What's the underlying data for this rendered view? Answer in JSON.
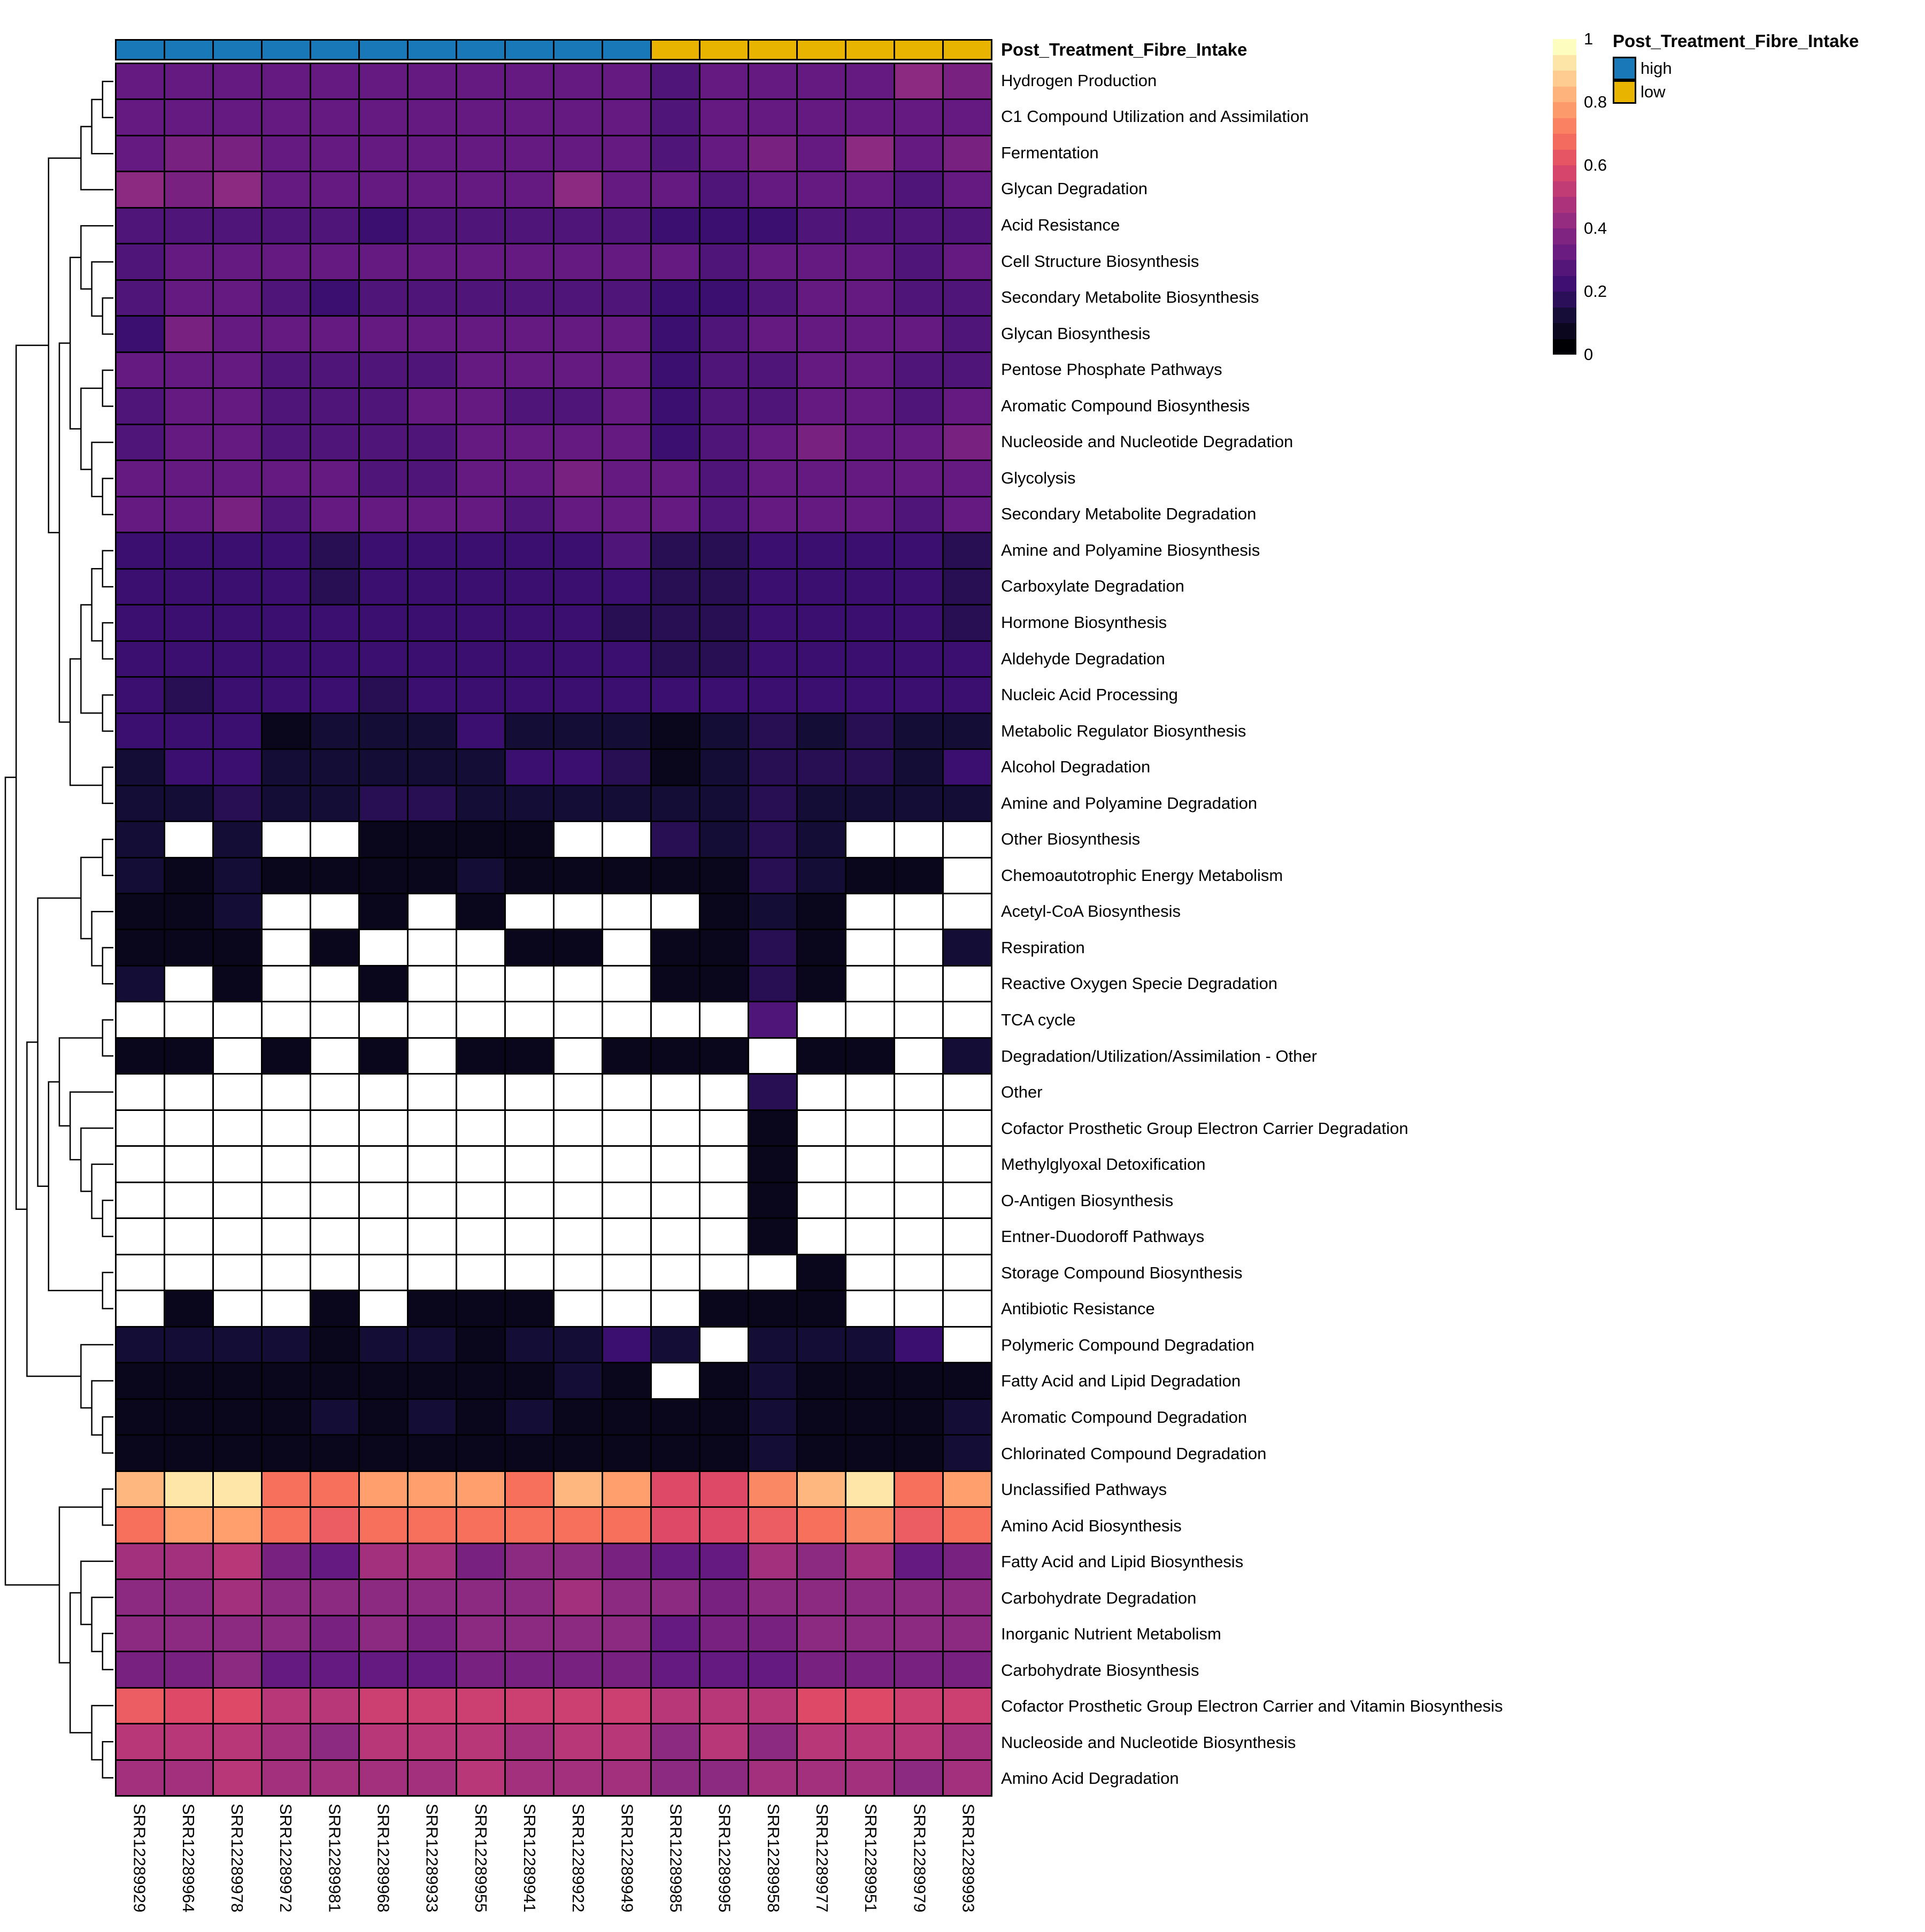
{
  "annotation_title": "Post_Treatment_Fibre_Intake",
  "annotation_legend": {
    "title": "Post_Treatment_Fibre_Intake",
    "entries": [
      {
        "label": "high",
        "color": "#1878b8"
      },
      {
        "label": "low",
        "color": "#e9b400"
      }
    ]
  },
  "colorbar": {
    "ticks": [
      "1",
      "0.8",
      "0.6",
      "0.4",
      "0.2",
      "0"
    ],
    "tick_values": [
      1,
      0.8,
      0.6,
      0.4,
      0.2,
      0
    ],
    "steps": 20
  },
  "chart_data": {
    "type": "heatmap",
    "colormap": "magma",
    "value_range": [
      0,
      1
    ],
    "na_color": "#ffffff",
    "grid_color": "#000000",
    "columns": [
      "SRR12289929",
      "SRR12289964",
      "SRR12289978",
      "SRR12289972",
      "SRR12289981",
      "SRR12289968",
      "SRR12289933",
      "SRR12289955",
      "SRR12289941",
      "SRR12289922",
      "SRR12289949",
      "SRR12289985",
      "SRR12289995",
      "SRR12289958",
      "SRR12289977",
      "SRR12289951",
      "SRR12289979",
      "SRR12289993"
    ],
    "column_groups": [
      "high",
      "high",
      "high",
      "high",
      "high",
      "high",
      "high",
      "high",
      "high",
      "high",
      "high",
      "low",
      "low",
      "low",
      "low",
      "low",
      "low",
      "low"
    ],
    "rows": [
      "Hydrogen Production",
      "C1 Compound Utilization and Assimilation",
      "Fermentation",
      "Glycan Degradation",
      "Acid Resistance",
      "Cell Structure Biosynthesis",
      "Secondary Metabolite Biosynthesis",
      "Glycan Biosynthesis",
      "Pentose Phosphate Pathways",
      "Aromatic Compound Biosynthesis",
      "Nucleoside and Nucleotide Degradation",
      "Glycolysis",
      "Secondary Metabolite Degradation",
      "Amine and Polyamine Biosynthesis",
      "Carboxylate Degradation",
      "Hormone Biosynthesis",
      "Aldehyde Degradation",
      "Nucleic Acid Processing",
      "Metabolic Regulator Biosynthesis",
      "Alcohol Degradation",
      "Amine and Polyamine Degradation",
      "Other Biosynthesis",
      "Chemoautotrophic Energy Metabolism",
      "Acetyl-CoA Biosynthesis",
      "Respiration",
      "Reactive Oxygen Specie Degradation",
      "TCA cycle",
      "Degradation/Utilization/Assimilation - Other",
      "Other",
      "Cofactor Prosthetic Group Electron Carrier Degradation",
      "Methylglyoxal Detoxification",
      "O-Antigen Biosynthesis",
      "Entner-Duodoroff Pathways",
      "Storage Compound Biosynthesis",
      "Antibiotic Resistance",
      "Polymeric Compound Degradation",
      "Fatty Acid and Lipid Degradation",
      "Aromatic Compound Degradation",
      "Chlorinated Compound Degradation",
      "Unclassified Pathways",
      "Amino Acid Biosynthesis",
      "Fatty Acid and Lipid Biosynthesis",
      "Carbohydrate Degradation",
      "Inorganic Nutrient Metabolism",
      "Carbohydrate Biosynthesis",
      "Cofactor Prosthetic Group Electron Carrier and Vitamin Biosynthesis",
      "Nucleoside and Nucleotide Biosynthesis",
      "Amino Acid Degradation"
    ],
    "values": [
      [
        0.3,
        0.3,
        0.3,
        0.3,
        0.3,
        0.3,
        0.3,
        0.32,
        0.32,
        0.32,
        0.32,
        0.24,
        0.3,
        0.3,
        0.3,
        0.32,
        0.38,
        0.36
      ],
      [
        0.32,
        0.3,
        0.3,
        0.28,
        0.28,
        0.28,
        0.28,
        0.3,
        0.28,
        0.3,
        0.3,
        0.24,
        0.28,
        0.28,
        0.28,
        0.3,
        0.28,
        0.3
      ],
      [
        0.28,
        0.36,
        0.36,
        0.3,
        0.28,
        0.32,
        0.32,
        0.32,
        0.32,
        0.32,
        0.32,
        0.24,
        0.28,
        0.34,
        0.3,
        0.38,
        0.32,
        0.34
      ],
      [
        0.38,
        0.36,
        0.38,
        0.3,
        0.3,
        0.32,
        0.28,
        0.32,
        0.28,
        0.38,
        0.32,
        0.28,
        0.24,
        0.3,
        0.32,
        0.32,
        0.26,
        0.3
      ],
      [
        0.26,
        0.26,
        0.26,
        0.26,
        0.26,
        0.22,
        0.26,
        0.26,
        0.26,
        0.26,
        0.26,
        0.22,
        0.22,
        0.22,
        0.24,
        0.24,
        0.24,
        0.26
      ],
      [
        0.26,
        0.3,
        0.3,
        0.28,
        0.28,
        0.28,
        0.28,
        0.28,
        0.28,
        0.28,
        0.28,
        0.28,
        0.26,
        0.28,
        0.28,
        0.3,
        0.26,
        0.28
      ],
      [
        0.26,
        0.28,
        0.28,
        0.26,
        0.22,
        0.26,
        0.26,
        0.26,
        0.26,
        0.26,
        0.26,
        0.22,
        0.22,
        0.26,
        0.28,
        0.28,
        0.24,
        0.24
      ],
      [
        0.22,
        0.34,
        0.3,
        0.3,
        0.28,
        0.3,
        0.28,
        0.28,
        0.3,
        0.3,
        0.28,
        0.22,
        0.24,
        0.28,
        0.28,
        0.3,
        0.28,
        0.26
      ],
      [
        0.28,
        0.3,
        0.3,
        0.26,
        0.26,
        0.26,
        0.26,
        0.3,
        0.3,
        0.3,
        0.3,
        0.22,
        0.24,
        0.26,
        0.3,
        0.3,
        0.26,
        0.26
      ],
      [
        0.26,
        0.3,
        0.3,
        0.26,
        0.26,
        0.26,
        0.32,
        0.3,
        0.26,
        0.26,
        0.3,
        0.22,
        0.26,
        0.26,
        0.28,
        0.28,
        0.24,
        0.28
      ],
      [
        0.26,
        0.3,
        0.28,
        0.26,
        0.26,
        0.26,
        0.26,
        0.28,
        0.28,
        0.28,
        0.28,
        0.22,
        0.26,
        0.3,
        0.34,
        0.28,
        0.28,
        0.34
      ],
      [
        0.3,
        0.3,
        0.3,
        0.28,
        0.28,
        0.26,
        0.26,
        0.3,
        0.28,
        0.34,
        0.3,
        0.28,
        0.26,
        0.28,
        0.28,
        0.3,
        0.28,
        0.28
      ],
      [
        0.3,
        0.3,
        0.36,
        0.24,
        0.3,
        0.28,
        0.28,
        0.3,
        0.26,
        0.3,
        0.3,
        0.28,
        0.26,
        0.32,
        0.3,
        0.3,
        0.24,
        0.28
      ],
      [
        0.2,
        0.2,
        0.2,
        0.2,
        0.14,
        0.2,
        0.2,
        0.2,
        0.2,
        0.2,
        0.26,
        0.16,
        0.16,
        0.2,
        0.2,
        0.2,
        0.2,
        0.16
      ],
      [
        0.2,
        0.2,
        0.2,
        0.2,
        0.14,
        0.2,
        0.2,
        0.2,
        0.2,
        0.2,
        0.22,
        0.14,
        0.16,
        0.2,
        0.2,
        0.2,
        0.2,
        0.14
      ],
      [
        0.2,
        0.2,
        0.2,
        0.2,
        0.2,
        0.2,
        0.2,
        0.2,
        0.2,
        0.2,
        0.16,
        0.14,
        0.16,
        0.2,
        0.2,
        0.2,
        0.2,
        0.14
      ],
      [
        0.2,
        0.2,
        0.2,
        0.2,
        0.2,
        0.2,
        0.2,
        0.2,
        0.2,
        0.2,
        0.2,
        0.14,
        0.16,
        0.2,
        0.2,
        0.2,
        0.18,
        0.2
      ],
      [
        0.2,
        0.14,
        0.2,
        0.2,
        0.2,
        0.14,
        0.2,
        0.2,
        0.2,
        0.2,
        0.2,
        0.18,
        0.18,
        0.2,
        0.2,
        0.2,
        0.2,
        0.18
      ],
      [
        0.18,
        0.18,
        0.18,
        0.05,
        0.1,
        0.12,
        0.1,
        0.18,
        0.1,
        0.1,
        0.1,
        0.04,
        0.1,
        0.16,
        0.12,
        0.16,
        0.08,
        0.08
      ],
      [
        0.08,
        0.18,
        0.18,
        0.12,
        0.1,
        0.1,
        0.1,
        0.12,
        0.18,
        0.18,
        0.14,
        0.04,
        0.1,
        0.16,
        0.16,
        0.16,
        0.12,
        0.18
      ],
      [
        0.1,
        0.1,
        0.16,
        0.1,
        0.1,
        0.16,
        0.16,
        0.1,
        0.1,
        0.1,
        0.12,
        0.1,
        0.1,
        0.14,
        0.1,
        0.12,
        0.1,
        0.1
      ],
      [
        0.1,
        null,
        0.1,
        null,
        null,
        0.06,
        0.06,
        0.06,
        0.06,
        null,
        null,
        0.14,
        0.08,
        0.14,
        0.08,
        null,
        null,
        null
      ],
      [
        0.08,
        0.06,
        0.12,
        0.06,
        0.06,
        0.06,
        0.06,
        0.12,
        0.06,
        0.06,
        0.06,
        0.06,
        0.06,
        0.14,
        0.08,
        0.06,
        0.06,
        null
      ],
      [
        0.06,
        0.06,
        0.12,
        null,
        null,
        0.06,
        null,
        0.06,
        null,
        null,
        null,
        null,
        0.06,
        0.08,
        0.06,
        null,
        null,
        null
      ],
      [
        0.06,
        0.06,
        0.06,
        null,
        0.06,
        null,
        null,
        null,
        0.06,
        0.06,
        null,
        0.06,
        0.06,
        0.14,
        0.06,
        null,
        null,
        0.08
      ],
      [
        0.12,
        null,
        0.06,
        null,
        null,
        0.06,
        null,
        null,
        null,
        null,
        null,
        0.06,
        0.06,
        0.14,
        0.06,
        null,
        null,
        null
      ],
      [
        null,
        null,
        null,
        null,
        null,
        null,
        null,
        null,
        null,
        null,
        null,
        null,
        null,
        0.25,
        null,
        null,
        null,
        null
      ],
      [
        0.06,
        0.06,
        null,
        0.06,
        null,
        0.06,
        null,
        0.06,
        0.06,
        null,
        0.06,
        0.06,
        0.06,
        null,
        0.06,
        0.06,
        null,
        0.08
      ],
      [
        null,
        null,
        null,
        null,
        null,
        null,
        null,
        null,
        null,
        null,
        null,
        null,
        null,
        0.16,
        null,
        null,
        null,
        null
      ],
      [
        null,
        null,
        null,
        null,
        null,
        null,
        null,
        null,
        null,
        null,
        null,
        null,
        null,
        0.05,
        null,
        null,
        null,
        null
      ],
      [
        null,
        null,
        null,
        null,
        null,
        null,
        null,
        null,
        null,
        null,
        null,
        null,
        null,
        0.05,
        null,
        null,
        null,
        null
      ],
      [
        null,
        null,
        null,
        null,
        null,
        null,
        null,
        null,
        null,
        null,
        null,
        null,
        null,
        0.05,
        null,
        null,
        null,
        null
      ],
      [
        null,
        null,
        null,
        null,
        null,
        null,
        null,
        null,
        null,
        null,
        null,
        null,
        null,
        0.05,
        null,
        null,
        null,
        null
      ],
      [
        null,
        null,
        null,
        null,
        null,
        null,
        null,
        null,
        null,
        null,
        null,
        null,
        null,
        null,
        0.05,
        null,
        null,
        null
      ],
      [
        null,
        0.05,
        null,
        null,
        0.05,
        null,
        0.05,
        0.05,
        0.05,
        null,
        null,
        null,
        0.05,
        0.05,
        0.05,
        null,
        null,
        null
      ],
      [
        0.1,
        0.08,
        0.08,
        0.08,
        0.06,
        0.1,
        0.1,
        0.06,
        0.1,
        0.08,
        0.18,
        0.08,
        null,
        0.1,
        0.08,
        0.08,
        0.18,
        null
      ],
      [
        0.05,
        0.05,
        0.05,
        0.05,
        0.05,
        0.05,
        0.05,
        0.05,
        0.05,
        0.1,
        0.05,
        null,
        0.05,
        0.1,
        0.05,
        0.05,
        0.05,
        0.05
      ],
      [
        0.04,
        0.04,
        0.04,
        0.04,
        0.1,
        0.04,
        0.08,
        0.04,
        0.08,
        0.04,
        0.04,
        0.04,
        0.04,
        0.1,
        0.04,
        0.04,
        0.04,
        0.08
      ],
      [
        0.04,
        0.04,
        0.04,
        0.04,
        0.04,
        0.04,
        0.04,
        0.04,
        0.04,
        0.04,
        0.04,
        0.04,
        0.04,
        0.1,
        0.04,
        0.04,
        0.04,
        0.08
      ],
      [
        0.85,
        0.95,
        0.95,
        0.7,
        0.7,
        0.78,
        0.8,
        0.78,
        0.72,
        0.85,
        0.8,
        0.62,
        0.62,
        0.75,
        0.85,
        0.95,
        0.7,
        0.8
      ],
      [
        0.7,
        0.78,
        0.8,
        0.7,
        0.64,
        0.72,
        0.7,
        0.7,
        0.68,
        0.72,
        0.72,
        0.6,
        0.62,
        0.66,
        0.7,
        0.76,
        0.66,
        0.7
      ],
      [
        0.46,
        0.44,
        0.48,
        0.34,
        0.32,
        0.44,
        0.46,
        0.36,
        0.4,
        0.38,
        0.34,
        0.3,
        0.3,
        0.44,
        0.42,
        0.44,
        0.32,
        0.36
      ],
      [
        0.42,
        0.42,
        0.44,
        0.38,
        0.38,
        0.42,
        0.4,
        0.4,
        0.4,
        0.44,
        0.42,
        0.4,
        0.34,
        0.4,
        0.4,
        0.42,
        0.4,
        0.4
      ],
      [
        0.38,
        0.38,
        0.38,
        0.38,
        0.36,
        0.38,
        0.36,
        0.38,
        0.38,
        0.38,
        0.38,
        0.32,
        0.36,
        0.36,
        0.38,
        0.38,
        0.38,
        0.38
      ],
      [
        0.36,
        0.36,
        0.42,
        0.3,
        0.32,
        0.32,
        0.32,
        0.34,
        0.34,
        0.34,
        0.34,
        0.3,
        0.32,
        0.32,
        0.36,
        0.36,
        0.36,
        0.34
      ],
      [
        0.64,
        0.58,
        0.62,
        0.52,
        0.52,
        0.54,
        0.54,
        0.54,
        0.54,
        0.54,
        0.54,
        0.48,
        0.48,
        0.52,
        0.6,
        0.6,
        0.54,
        0.54
      ],
      [
        0.48,
        0.5,
        0.52,
        0.46,
        0.4,
        0.48,
        0.48,
        0.48,
        0.46,
        0.48,
        0.48,
        0.42,
        0.48,
        0.42,
        0.48,
        0.48,
        0.48,
        0.46
      ],
      [
        0.46,
        0.46,
        0.52,
        0.44,
        0.44,
        0.44,
        0.44,
        0.48,
        0.44,
        0.44,
        0.44,
        0.4,
        0.4,
        0.44,
        0.44,
        0.46,
        0.42,
        0.44
      ]
    ],
    "row_dendrogram": [
      [
        [
          [
            [
              [
                0,
                1
              ],
              2
            ],
            3
          ],
          [
            [
              [
                4,
                [
                  5,
                  [
                    6,
                    7
                  ]
                ]
              ],
              [
                [
                  8,
                  9
                ],
                [
                  10,
                  [
                    11,
                    12
                  ]
                ]
              ]
            ],
            [
              [
                [
                  [
                    13,
                    14
                  ],
                  [
                    15,
                    16
                  ]
                ],
                [
                  17,
                  18
                ]
              ],
              [
                19,
                20
              ]
            ]
          ]
        ],
        [
          [
            [
              [
                21,
                22
              ],
              [
                23,
                [
                  24,
                  25
                ]
              ]
            ],
            [
              [
                [
                  26,
                  27
                ],
                [
                  28,
                  [
                    29,
                    [
                      30,
                      [
                        31,
                        32
                      ]
                    ]
                  ]
                ]
              ],
              [
                33,
                34
              ]
            ]
          ],
          [
            35,
            [
              36,
              [
                37,
                38
              ]
            ]
          ]
        ]
      ],
      [
        [
          39,
          40
        ],
        [
          [
            41,
            [
              42,
              [
                43,
                44
              ]
            ]
          ],
          [
            45,
            [
              46,
              47
            ]
          ]
        ]
      ]
    ]
  }
}
